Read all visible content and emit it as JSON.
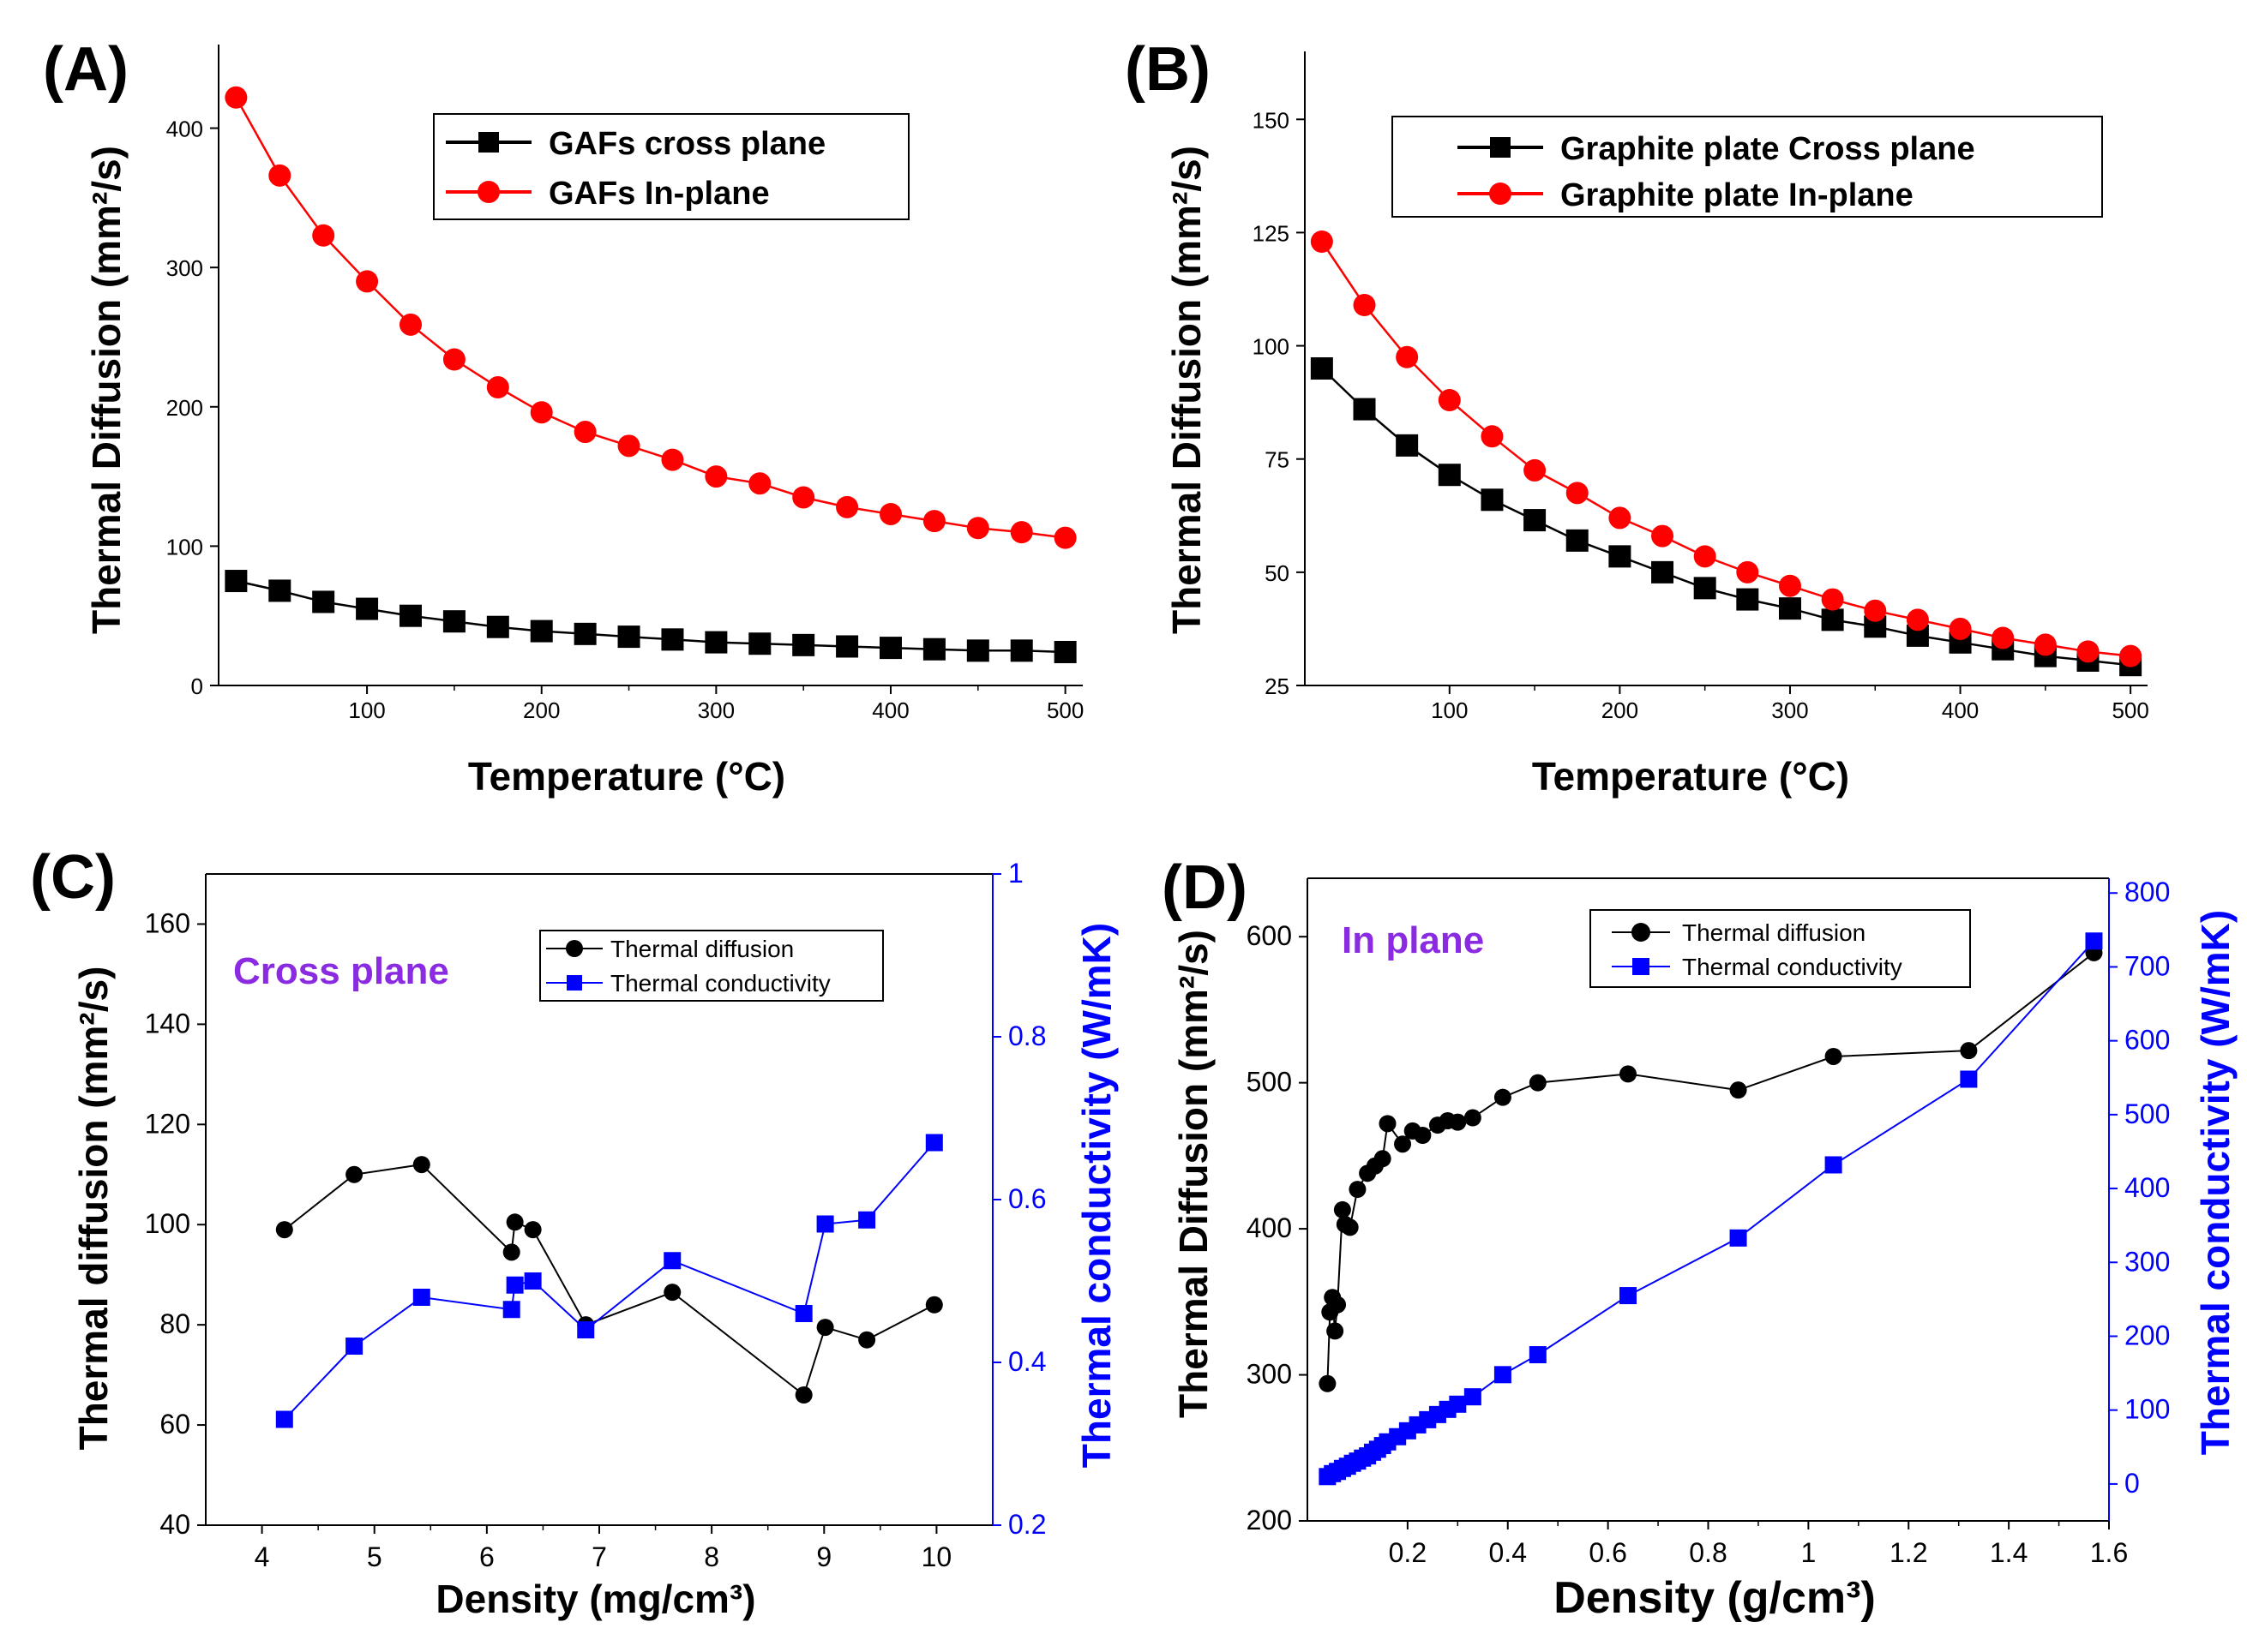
{
  "figure": {
    "panels": [
      "(A)",
      "(B)",
      "(C)",
      "(D)"
    ]
  },
  "chart_data": [
    {
      "id": "A",
      "label": "(A)",
      "type": "line",
      "xlabel": "Temperature (°C)",
      "ylabel": "Thermal Diffusion (mm²/s)",
      "xlim": [
        15,
        510
      ],
      "ylim": [
        0,
        460
      ],
      "xticks": [
        100,
        200,
        300,
        400,
        500
      ],
      "yticks": [
        0,
        100,
        200,
        300,
        400
      ],
      "x": [
        25,
        50,
        75,
        100,
        125,
        150,
        175,
        200,
        225,
        250,
        275,
        300,
        325,
        350,
        375,
        400,
        425,
        450,
        475,
        500
      ],
      "series": [
        {
          "name": "GAFs cross plane",
          "color": "#000000",
          "marker": "square",
          "values": [
            75,
            68,
            60,
            55,
            50,
            46,
            42,
            39,
            37,
            35,
            33,
            31,
            30,
            29,
            28,
            27,
            26,
            25,
            25,
            24
          ]
        },
        {
          "name": "GAFs In-plane",
          "color": "#ff0000",
          "marker": "circle",
          "values": [
            422,
            366,
            323,
            290,
            259,
            234,
            214,
            196,
            182,
            172,
            162,
            150,
            145,
            135,
            128,
            123,
            118,
            113,
            110,
            106
          ]
        }
      ],
      "legend": "top-right"
    },
    {
      "id": "B",
      "label": "(B)",
      "type": "line",
      "xlabel": "Temperature (°C)",
      "ylabel": "Thermal Diffusion (mm²/s)",
      "xlim": [
        15,
        510
      ],
      "ylim": [
        25,
        165
      ],
      "xticks": [
        100,
        200,
        300,
        400,
        500
      ],
      "yticks": [
        25,
        50,
        75,
        100,
        125,
        150
      ],
      "x": [
        25,
        50,
        75,
        100,
        125,
        150,
        175,
        200,
        225,
        250,
        275,
        300,
        325,
        350,
        375,
        400,
        425,
        450,
        475,
        500
      ],
      "series": [
        {
          "name": "Graphite plate Cross plane",
          "color": "#000000",
          "marker": "square",
          "values": [
            95,
            86,
            78,
            71.5,
            66,
            61.5,
            57,
            53.5,
            50,
            46.5,
            44,
            42,
            39.5,
            38,
            36,
            34.5,
            33,
            31.5,
            30.5,
            29.5
          ]
        },
        {
          "name": "Graphite plate In-plane",
          "color": "#ff0000",
          "marker": "circle",
          "values": [
            123,
            109,
            97.5,
            88,
            80,
            72.5,
            67.5,
            62,
            58,
            53.5,
            50,
            47,
            44,
            41.5,
            39.5,
            37.5,
            35.5,
            34,
            32.5,
            31.5
          ]
        }
      ],
      "legend": "top-right"
    },
    {
      "id": "C",
      "label": "(C)",
      "type": "line",
      "annotation": "Cross plane",
      "xlabel": "Density (mg/cm³)",
      "ylabel": "Thermal diffusion (mm²/s)",
      "y2label": "Thermal conductivity (W/mK)",
      "xlim": [
        3.5,
        10.5
      ],
      "ylim": [
        40,
        170
      ],
      "y2lim": [
        0.2,
        1.0
      ],
      "xticks": [
        4,
        5,
        6,
        7,
        8,
        9,
        10
      ],
      "yticks": [
        40,
        60,
        80,
        100,
        120,
        140,
        160
      ],
      "y2ticks": [
        0.2,
        0.4,
        0.6,
        0.8,
        1.0
      ],
      "series": [
        {
          "name": "Thermal diffusion",
          "axis": "left",
          "color": "#000000",
          "marker": "circle",
          "x": [
            4.2,
            4.82,
            5.42,
            6.22,
            6.25,
            6.41,
            6.88,
            7.65,
            8.82,
            9.01,
            9.38,
            9.98
          ],
          "values": [
            99,
            110,
            112,
            94.5,
            100.5,
            99,
            80,
            86.5,
            66,
            79.5,
            77,
            84
          ]
        },
        {
          "name": "Thermal conductivity",
          "axis": "right",
          "color": "#0000ff",
          "marker": "square",
          "x": [
            4.2,
            4.82,
            5.42,
            6.22,
            6.25,
            6.41,
            6.88,
            7.65,
            8.82,
            9.01,
            9.38,
            9.98
          ],
          "values": [
            0.33,
            0.42,
            0.48,
            0.465,
            0.495,
            0.5,
            0.44,
            0.525,
            0.46,
            0.57,
            0.575,
            0.67
          ]
        }
      ],
      "legend": "top-right"
    },
    {
      "id": "D",
      "label": "(D)",
      "type": "line",
      "annotation": "In plane",
      "xlabel": "Density (g/cm³)",
      "ylabel": "Thermal Diffusion (mm²/s)",
      "y2label": "Thermal conductivity (W/mK)",
      "xlim": [
        0,
        1.6
      ],
      "ylim": [
        200,
        640
      ],
      "y2lim": [
        -50,
        820
      ],
      "xticks": [
        0.2,
        0.4,
        0.6,
        0.8,
        1.0,
        1.2,
        1.4,
        1.6
      ],
      "yticks": [
        200,
        300,
        400,
        500,
        600
      ],
      "y2ticks": [
        0,
        100,
        200,
        300,
        400,
        500,
        600,
        700,
        800
      ],
      "series": [
        {
          "name": "Thermal diffusion",
          "axis": "left",
          "color": "#000000",
          "marker": "circle",
          "x": [
            0.04,
            0.045,
            0.05,
            0.055,
            0.06,
            0.07,
            0.075,
            0.085,
            0.1,
            0.12,
            0.135,
            0.15,
            0.16,
            0.19,
            0.21,
            0.23,
            0.26,
            0.28,
            0.3,
            0.33,
            0.39,
            0.46,
            0.64,
            0.86,
            1.05,
            1.32,
            1.57
          ],
          "values": [
            294,
            343,
            353,
            330,
            348,
            413,
            403,
            401,
            427,
            438,
            443,
            448,
            472,
            458,
            467,
            464,
            471,
            474,
            473,
            476,
            490,
            500,
            506,
            495,
            518,
            522,
            589
          ]
        },
        {
          "name": "Thermal conductivity",
          "axis": "right",
          "color": "#0000ff",
          "marker": "square",
          "x": [
            0.04,
            0.05,
            0.06,
            0.07,
            0.08,
            0.09,
            0.1,
            0.11,
            0.12,
            0.13,
            0.14,
            0.15,
            0.16,
            0.18,
            0.2,
            0.22,
            0.24,
            0.26,
            0.28,
            0.3,
            0.33,
            0.39,
            0.46,
            0.64,
            0.86,
            1.05,
            1.32,
            1.57
          ],
          "values": [
            10,
            14,
            17,
            21,
            24,
            28,
            31,
            35,
            38,
            43,
            47,
            52,
            57,
            64,
            72,
            80,
            87,
            94,
            101,
            108,
            118,
            148,
            175,
            255,
            333,
            432,
            548,
            735
          ]
        }
      ],
      "legend": "top-right"
    }
  ]
}
